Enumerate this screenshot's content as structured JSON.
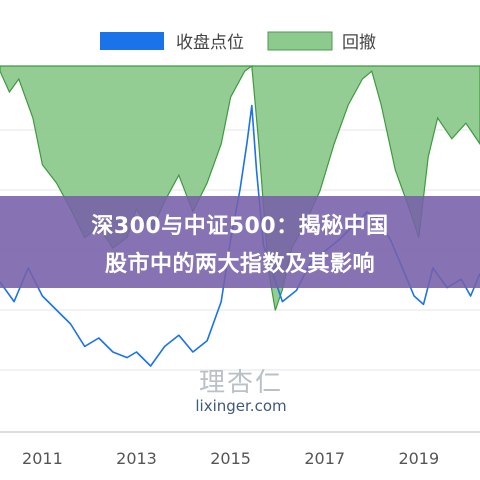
{
  "chart_data": {
    "type": "line",
    "title": "",
    "xlabel": "",
    "ylabel": "",
    "x_ticks": [
      "2011",
      "2013",
      "2015",
      "2017",
      "2019"
    ],
    "x_range": [
      2010.1,
      2020.3
    ],
    "legend": {
      "placement": "top",
      "items": [
        "收盘点位",
        "回撤"
      ]
    },
    "grid": true,
    "series": [
      {
        "name": "收盘点位",
        "kind": "line",
        "color": "#1a73e8",
        "x": [
          2010.1,
          2010.4,
          2010.7,
          2011.0,
          2011.3,
          2011.6,
          2011.9,
          2012.2,
          2012.5,
          2012.8,
          2013.0,
          2013.3,
          2013.6,
          2013.9,
          2014.2,
          2014.5,
          2014.8,
          2015.0,
          2015.2,
          2015.35,
          2015.45,
          2015.55,
          2015.7,
          2015.9,
          2016.1,
          2016.4,
          2016.7,
          2017.0,
          2017.3,
          2017.6,
          2017.9,
          2018.1,
          2018.4,
          2018.7,
          2018.9,
          2019.1,
          2019.3,
          2019.6,
          2019.9,
          2020.1,
          2020.3
        ],
        "level": [
          0.35,
          0.28,
          0.4,
          0.3,
          0.25,
          0.2,
          0.12,
          0.15,
          0.1,
          0.08,
          0.1,
          0.05,
          0.12,
          0.16,
          0.1,
          0.14,
          0.28,
          0.5,
          0.68,
          0.85,
          0.98,
          0.75,
          0.48,
          0.38,
          0.28,
          0.32,
          0.42,
          0.46,
          0.5,
          0.55,
          0.6,
          0.58,
          0.5,
          0.38,
          0.3,
          0.27,
          0.4,
          0.33,
          0.36,
          0.3,
          0.38
        ]
      },
      {
        "name": "回撤",
        "kind": "area",
        "color": "#8dca8d",
        "x": [
          2010.1,
          2010.3,
          2010.5,
          2010.8,
          2011.0,
          2011.3,
          2011.6,
          2011.9,
          2012.2,
          2012.5,
          2012.8,
          2013.0,
          2013.3,
          2013.6,
          2013.9,
          2014.2,
          2014.5,
          2014.8,
          2015.0,
          2015.3,
          2015.45,
          2015.6,
          2015.8,
          2015.95,
          2016.1,
          2016.3,
          2016.6,
          2016.9,
          2017.2,
          2017.5,
          2017.8,
          2018.0,
          2018.2,
          2018.5,
          2018.8,
          2019.0,
          2019.2,
          2019.4,
          2019.7,
          2020.0,
          2020.3
        ],
        "drawdown": [
          0.02,
          0.1,
          0.05,
          0.2,
          0.38,
          0.45,
          0.55,
          0.66,
          0.62,
          0.7,
          0.66,
          0.55,
          0.64,
          0.52,
          0.42,
          0.56,
          0.45,
          0.3,
          0.12,
          0.02,
          0.0,
          0.3,
          0.78,
          0.94,
          0.86,
          0.7,
          0.6,
          0.48,
          0.3,
          0.15,
          0.05,
          0.02,
          0.15,
          0.4,
          0.55,
          0.66,
          0.35,
          0.2,
          0.28,
          0.22,
          0.3
        ]
      }
    ]
  },
  "banner": {
    "line1": "深300与中证500：揭秘中国",
    "line2": "股市中的两大指数及其影响"
  },
  "watermark": {
    "logo": "理杏仁",
    "url": "lixinger.com"
  }
}
